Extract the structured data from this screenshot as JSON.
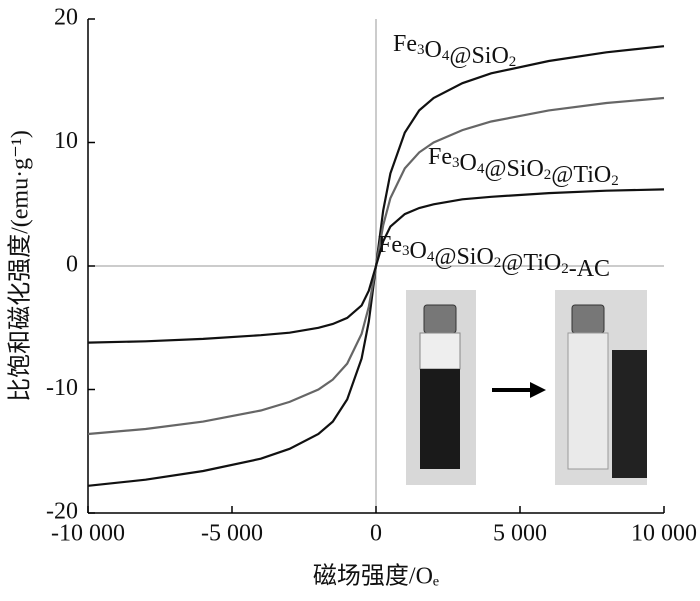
{
  "chart_data": {
    "type": "line",
    "x_label": "磁场强度/Oₑ",
    "y_label": "比饱和磁化强度/(emu·g⁻¹)",
    "x": [
      -10000,
      -8000,
      -6000,
      -4000,
      -3000,
      -2000,
      -1500,
      -1000,
      -500,
      -250,
      0,
      250,
      500,
      1000,
      1500,
      2000,
      3000,
      4000,
      6000,
      8000,
      10000
    ],
    "series": [
      {
        "name": "Fe3O4@SiO2",
        "color": "#111111",
        "values": [
          -17.8,
          -17.3,
          -16.6,
          -15.6,
          -14.8,
          -13.6,
          -12.6,
          -10.8,
          -7.5,
          -4.5,
          0,
          4.5,
          7.5,
          10.8,
          12.6,
          13.6,
          14.8,
          15.6,
          16.6,
          17.3,
          17.8
        ]
      },
      {
        "name": "Fe3O4@SiO2@TiO2",
        "color": "#666666",
        "values": [
          -13.6,
          -13.2,
          -12.6,
          -11.7,
          -11.0,
          -10.0,
          -9.2,
          -7.9,
          -5.5,
          -3.3,
          0,
          3.3,
          5.5,
          7.9,
          9.2,
          10.0,
          11.0,
          11.7,
          12.6,
          13.2,
          13.6
        ]
      },
      {
        "name": "Fe3O4@SiO2@TiO2-AC",
        "color": "#111111",
        "values": [
          -6.2,
          -6.1,
          -5.9,
          -5.6,
          -5.4,
          -5.0,
          -4.7,
          -4.2,
          -3.2,
          -2.0,
          0,
          2.0,
          3.2,
          4.2,
          4.7,
          5.0,
          5.4,
          5.6,
          5.9,
          6.1,
          6.2
        ]
      }
    ],
    "xlim": [
      -10000,
      10000
    ],
    "xticks": [
      {
        "value": -10000,
        "label": "-10 000"
      },
      {
        "value": -5000,
        "label": "-5 000"
      },
      0,
      {
        "value": 5000,
        "label": "5 000"
      },
      {
        "value": 10000,
        "label": "10 000"
      }
    ],
    "ylim": [
      -20,
      20
    ],
    "yticks": [
      -20,
      -10,
      0,
      10,
      20
    ]
  }
}
